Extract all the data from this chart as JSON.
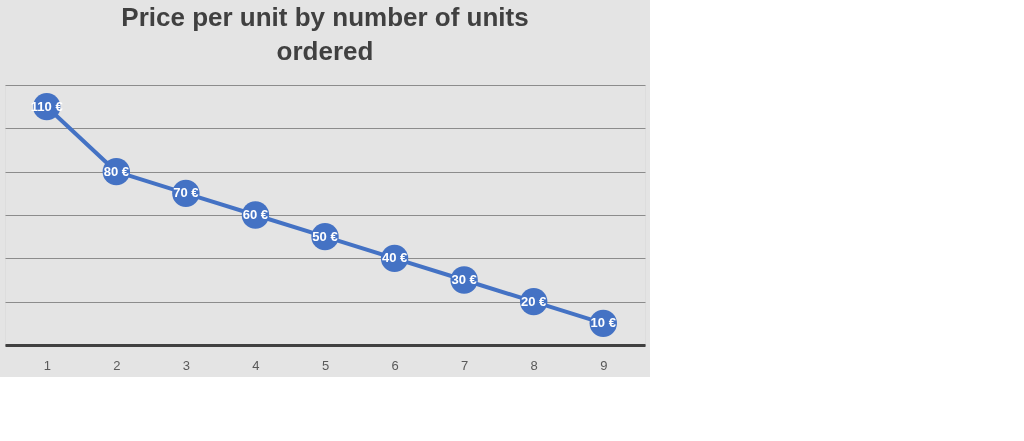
{
  "chart_data": {
    "type": "line",
    "title": "Price per unit by number of units ordered",
    "categories": [
      "1",
      "2",
      "3",
      "4",
      "5",
      "6",
      "7",
      "8",
      "9"
    ],
    "series": [
      {
        "color": "#4472c4",
        "values": [
          110,
          80,
          70,
          60,
          50,
          40,
          30,
          20,
          10
        ],
        "value_labels": [
          "110 €",
          "80 €",
          "70 €",
          "60 €",
          "50 €",
          "40 €",
          "30 €",
          "20 €",
          "10 €"
        ]
      }
    ],
    "ylim": [
      0,
      120
    ],
    "yticks": [
      {
        "value": 0,
        "label": null
      },
      {
        "value": 20,
        "label": null
      },
      {
        "value": 40,
        "label": null
      },
      {
        "value": 60,
        "label": null
      },
      {
        "value": 80,
        "label": null
      },
      {
        "value": 100,
        "label": null
      },
      {
        "value": 120,
        "label": null
      }
    ],
    "tick_labels": "x",
    "grid": "y",
    "marker": "circle",
    "line_style": "solid"
  }
}
